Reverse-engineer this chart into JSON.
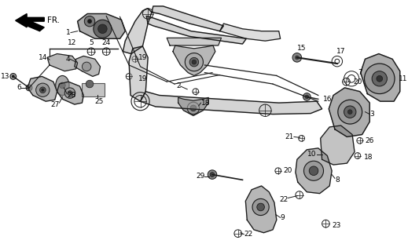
{
  "bg": "#ffffff",
  "lc": "#1a1a1a",
  "fs": 6.5,
  "figw": 5.19,
  "figh": 3.2,
  "dpi": 100
}
